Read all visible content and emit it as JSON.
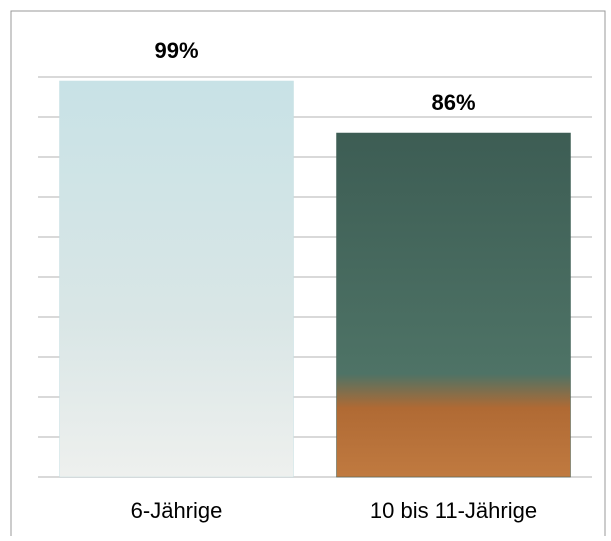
{
  "chart_data": {
    "type": "bar",
    "categories": [
      "6-Jährige",
      "10 bis 11-Jährige"
    ],
    "values": [
      99,
      86
    ],
    "value_labels": [
      "99%",
      "86%"
    ],
    "colors": [
      "#c5dfe3",
      "#3f5f55"
    ],
    "ylim": [
      0,
      100
    ],
    "yticks": [
      0,
      10,
      20,
      30,
      40,
      50,
      60,
      70,
      80,
      90,
      100
    ],
    "grid": true
  }
}
